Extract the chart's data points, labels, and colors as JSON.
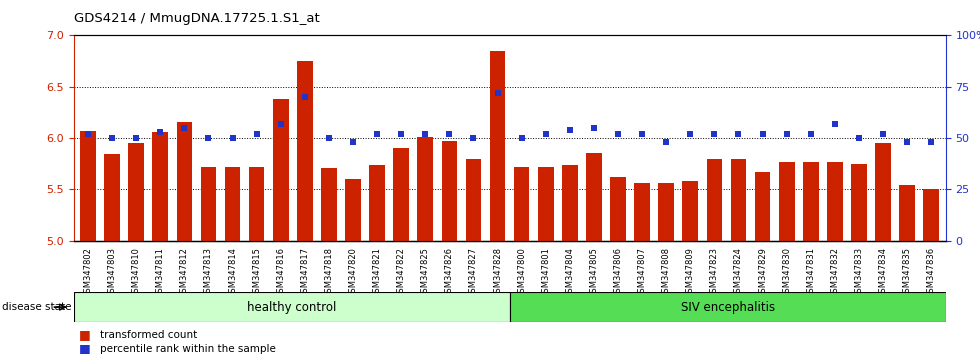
{
  "title": "GDS4214 / MmugDNA.17725.1.S1_at",
  "samples": [
    "GSM347802",
    "GSM347803",
    "GSM347810",
    "GSM347811",
    "GSM347812",
    "GSM347813",
    "GSM347814",
    "GSM347815",
    "GSM347816",
    "GSM347817",
    "GSM347818",
    "GSM347820",
    "GSM347821",
    "GSM347822",
    "GSM347825",
    "GSM347826",
    "GSM347827",
    "GSM347828",
    "GSM347800",
    "GSM347801",
    "GSM347804",
    "GSM347805",
    "GSM347806",
    "GSM347807",
    "GSM347808",
    "GSM347809",
    "GSM347823",
    "GSM347824",
    "GSM347829",
    "GSM347830",
    "GSM347831",
    "GSM347832",
    "GSM347833",
    "GSM347834",
    "GSM347835",
    "GSM347836"
  ],
  "bar_values": [
    6.07,
    5.84,
    5.95,
    6.06,
    6.16,
    5.72,
    5.72,
    5.72,
    6.38,
    6.75,
    5.71,
    5.6,
    5.74,
    5.9,
    6.01,
    5.97,
    5.8,
    6.85,
    5.72,
    5.72,
    5.74,
    5.85,
    5.62,
    5.56,
    5.56,
    5.58,
    5.8,
    5.8,
    5.67,
    5.77,
    5.77,
    5.77,
    5.75,
    5.95,
    5.54,
    5.5
  ],
  "percentile_values": [
    52,
    50,
    50,
    53,
    55,
    50,
    50,
    52,
    57,
    70,
    50,
    48,
    52,
    52,
    52,
    52,
    50,
    72,
    50,
    52,
    54,
    55,
    52,
    52,
    48,
    52,
    52,
    52,
    52,
    52,
    52,
    57,
    50,
    52,
    48,
    48
  ],
  "n_healthy": 18,
  "n_siv": 18,
  "ylim_left": [
    5.0,
    7.0
  ],
  "ylim_right": [
    0,
    100
  ],
  "yticks_left": [
    5.0,
    5.5,
    6.0,
    6.5,
    7.0
  ],
  "yticks_right": [
    0,
    25,
    50,
    75,
    100
  ],
  "bar_color": "#cc2200",
  "dot_color": "#2233cc",
  "healthy_color": "#ccffcc",
  "siv_color": "#55dd55",
  "group_label_healthy": "healthy control",
  "group_label_siv": "SIV encephalitis",
  "disease_state_label": "disease state",
  "legend_bar_label": "transformed count",
  "legend_dot_label": "percentile rank within the sample",
  "plot_bg": "#ffffff",
  "tick_bg": "#cccccc"
}
